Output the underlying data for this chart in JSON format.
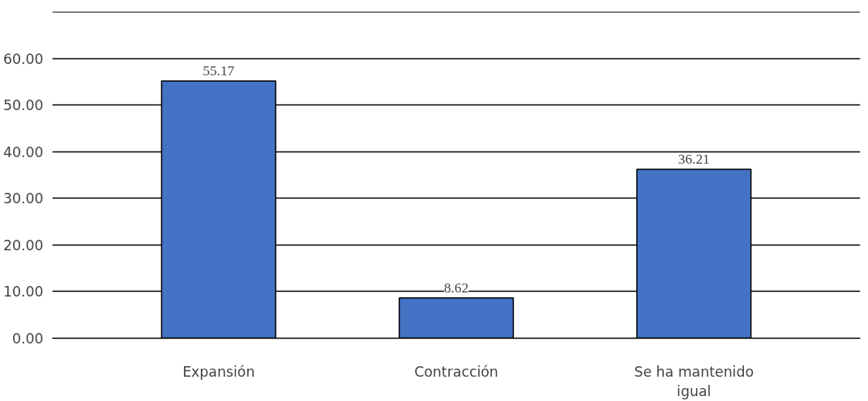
{
  "chart_data": {
    "type": "bar",
    "categories": [
      "Expansión",
      "Contracción",
      "Se ha mantenido igual"
    ],
    "values": [
      55.17,
      8.62,
      36.21
    ],
    "color": "#4472c4",
    "data_labels": true,
    "grid": "y",
    "ylim": [
      0,
      70
    ],
    "yticks": [
      {
        "value": 0,
        "label": "0.00"
      },
      {
        "value": 10,
        "label": "10.00"
      },
      {
        "value": 20,
        "label": "20.00"
      },
      {
        "value": 30,
        "label": "30.00"
      },
      {
        "value": 40,
        "label": "40.00"
      },
      {
        "value": 50,
        "label": "50.00"
      },
      {
        "value": 60,
        "label": "60.00"
      },
      {
        "value": 70,
        "label": null
      }
    ]
  }
}
